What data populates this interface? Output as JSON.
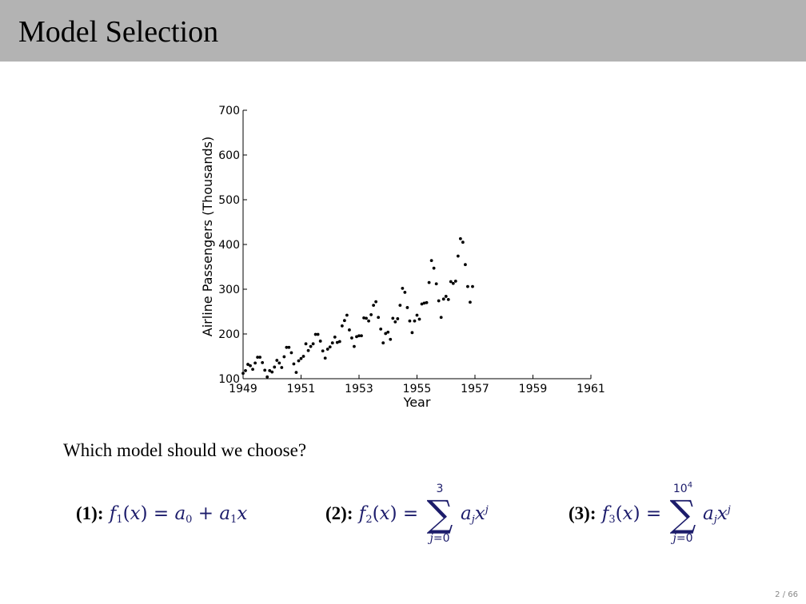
{
  "slide": {
    "title": "Model Selection",
    "question": "Which model should we choose?",
    "page_number": "2 / 66"
  },
  "formulas": [
    {
      "label": "(1):",
      "text": "f1(x) = a0 + a1x"
    },
    {
      "label": "(2):",
      "text": "f2(x) = Σ_{j=0}^{3} a_j x^j",
      "sum_upper": "3",
      "sum_lower": "j=0"
    },
    {
      "label": "(3):",
      "text": "f3(x) = Σ_{j=0}^{10^4} a_j x^j",
      "sum_upper": "10^4",
      "sum_lower": "j=0"
    }
  ],
  "chart_data": {
    "type": "scatter",
    "title": "",
    "xlabel": "Year",
    "ylabel": "Airline Passengers (Thousands)",
    "xlim": [
      1949,
      1961
    ],
    "ylim": [
      100,
      700
    ],
    "x_ticks": [
      "1949",
      "1951",
      "1953",
      "1955",
      "1957",
      "1959",
      "1961"
    ],
    "y_ticks": [
      "100",
      "200",
      "300",
      "400",
      "500",
      "600",
      "700"
    ],
    "grid": false,
    "marker_color": "#000000",
    "series": [
      {
        "x": [
          1949.0,
          1949.083,
          1949.167,
          1949.25,
          1949.333,
          1949.417,
          1949.5,
          1949.583,
          1949.667,
          1949.75,
          1949.833,
          1949.917,
          1950.0,
          1950.083,
          1950.167,
          1950.25,
          1950.333,
          1950.417,
          1950.5,
          1950.583,
          1950.667,
          1950.75,
          1950.833,
          1950.917,
          1951.0,
          1951.083,
          1951.167,
          1951.25,
          1951.333,
          1951.417,
          1951.5,
          1951.583,
          1951.667,
          1951.75,
          1951.833,
          1951.917,
          1952.0,
          1952.083,
          1952.167,
          1952.25,
          1952.333,
          1952.417,
          1952.5,
          1952.583,
          1952.667,
          1952.75,
          1952.833,
          1952.917,
          1953.0,
          1953.083,
          1953.167,
          1953.25,
          1953.333,
          1953.417,
          1953.5,
          1953.583,
          1953.667,
          1953.75,
          1953.833,
          1953.917,
          1954.0,
          1954.083,
          1954.167,
          1954.25,
          1954.333,
          1954.417,
          1954.5,
          1954.583,
          1954.667,
          1954.75,
          1954.833,
          1954.917,
          1955.0,
          1955.083,
          1955.167,
          1955.25,
          1955.333,
          1955.417,
          1955.5,
          1955.583,
          1955.667,
          1955.75,
          1955.833,
          1955.917,
          1956.0,
          1956.083,
          1956.167,
          1956.25,
          1956.333,
          1956.417,
          1956.5,
          1956.583,
          1956.667,
          1956.75,
          1956.833,
          1956.917
        ],
        "y": [
          112,
          118,
          132,
          129,
          121,
          135,
          148,
          148,
          136,
          119,
          104,
          118,
          115,
          126,
          141,
          135,
          125,
          149,
          170,
          170,
          158,
          133,
          114,
          140,
          145,
          150,
          178,
          163,
          172,
          178,
          199,
          199,
          184,
          162,
          146,
          166,
          171,
          180,
          193,
          181,
          183,
          218,
          230,
          242,
          209,
          191,
          172,
          194,
          196,
          196,
          236,
          235,
          229,
          243,
          264,
          272,
          237,
          211,
          180,
          201,
          204,
          188,
          235,
          227,
          234,
          264,
          302,
          293,
          259,
          229,
          203,
          229,
          242,
          233,
          267,
          269,
          270,
          315,
          364,
          347,
          312,
          274,
          237,
          278,
          284,
          277,
          317,
          313,
          318,
          374,
          413,
          405,
          355,
          306,
          271,
          306
        ]
      }
    ]
  }
}
